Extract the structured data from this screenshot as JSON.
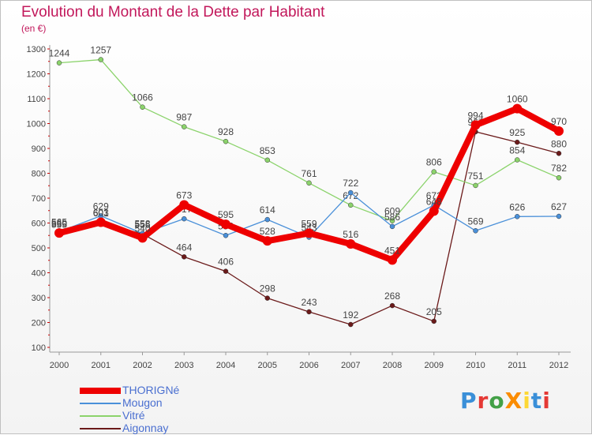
{
  "title": "Evolution du Montant de la Dette par Habitant",
  "subtitle": "(en €)",
  "logo": "ProXiti",
  "chart_data": {
    "type": "line",
    "title": "Evolution du Montant de la Dette par Habitant",
    "subtitle": "(en €)",
    "xlabel": "",
    "ylabel": "",
    "categories": [
      "2000",
      "2001",
      "2002",
      "2003",
      "2004",
      "2005",
      "2006",
      "2007",
      "2008",
      "2009",
      "2010",
      "2011",
      "2012"
    ],
    "ylim": [
      100,
      1300
    ],
    "yticks": [
      100,
      200,
      300,
      400,
      500,
      600,
      700,
      800,
      900,
      1000,
      1100,
      1200,
      1300
    ],
    "grid": false,
    "legend_position": "bottom-left",
    "series": [
      {
        "name": "Aigonnay",
        "color": "#6b1a1a",
        "values": [
          555,
          601,
          556,
          464,
          406,
          298,
          243,
          192,
          268,
          205,
          967,
          925,
          880
        ]
      },
      {
        "name": "Vitré",
        "color": "#8bd36b",
        "values": [
          1244,
          1257,
          1066,
          987,
          928,
          853,
          761,
          672,
          609,
          806,
          751,
          854,
          782
        ]
      },
      {
        "name": "Mougon",
        "color": "#4a90d9",
        "values": [
          565,
          629,
          558,
          617,
          550,
          614,
          543,
          722,
          586,
          672,
          569,
          626,
          627
        ]
      },
      {
        "name": "THORIGNé",
        "color": "#ee0000",
        "values": [
          560,
          603,
          540,
          673,
          595,
          528,
          559,
          516,
          451,
          648,
          994,
          1060,
          970
        ]
      }
    ]
  }
}
